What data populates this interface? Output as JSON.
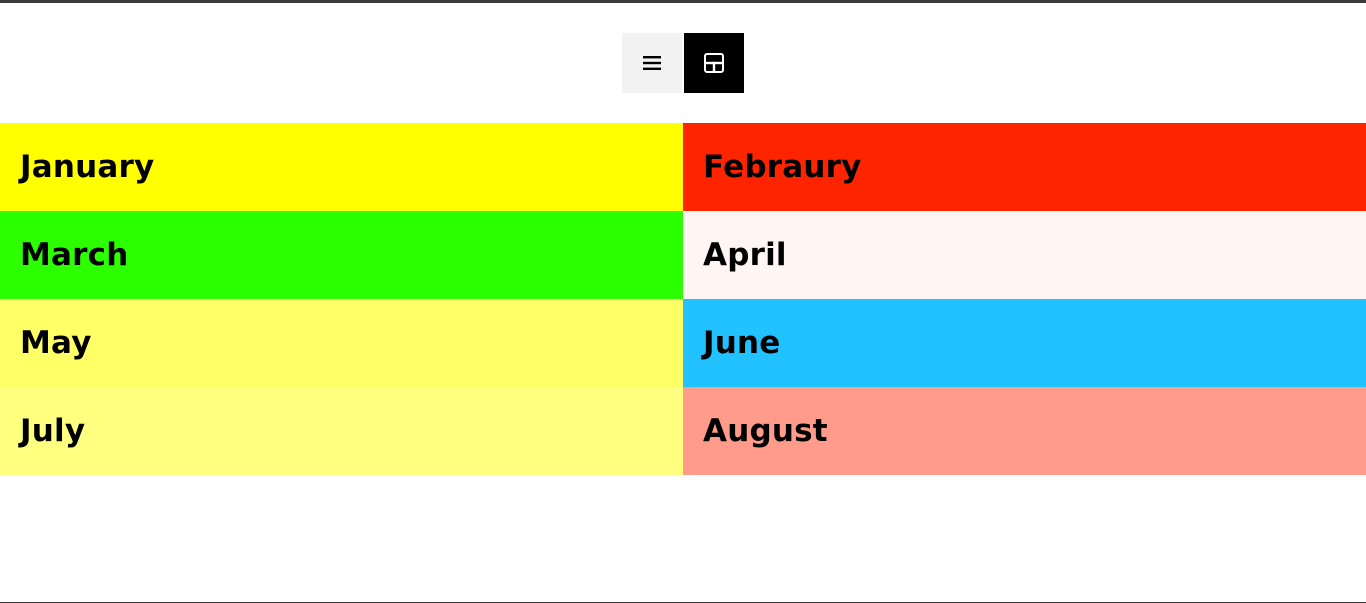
{
  "view_toggle": {
    "list_icon": "list-icon",
    "grid_icon": "grid-icon",
    "active": "grid"
  },
  "months": [
    {
      "label": "January",
      "color": "#ffff00"
    },
    {
      "label": "Febraury",
      "color": "#ff2400"
    },
    {
      "label": "March",
      "color": "#2bff00"
    },
    {
      "label": "April",
      "color": "#fff5f3"
    },
    {
      "label": "May",
      "color": "#ffff66"
    },
    {
      "label": "June",
      "color": "#22c1ff"
    },
    {
      "label": "July",
      "color": "#ffff80"
    },
    {
      "label": "August",
      "color": "#ff9b8a"
    }
  ]
}
